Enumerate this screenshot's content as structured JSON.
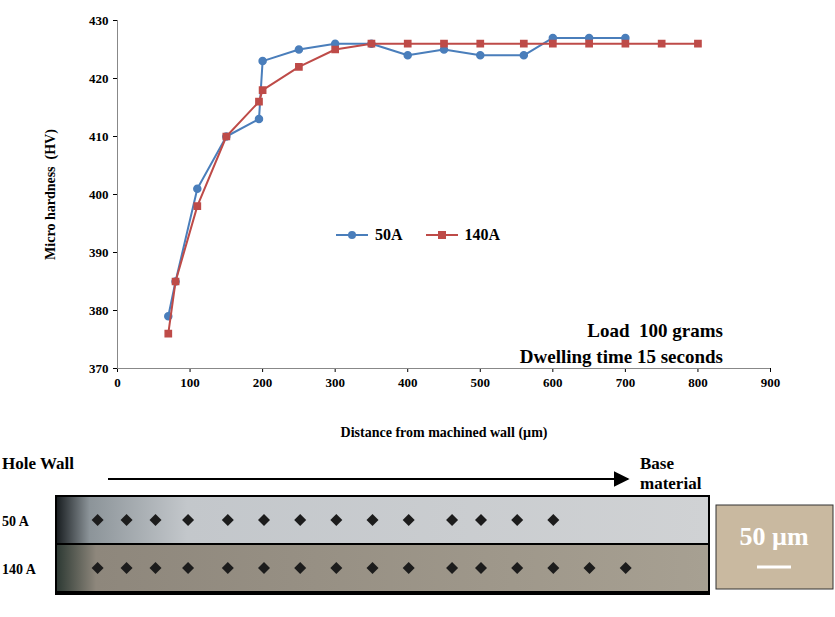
{
  "chart_data": {
    "type": "line",
    "x_label": "Distance from machined wall (µm)",
    "y_label": "Micro hardness  (HV)",
    "annotations": [
      "Load  100 grams",
      "Dwelling time 15 seconds"
    ],
    "xlim": [
      0,
      900
    ],
    "xticks": [
      0,
      100,
      200,
      300,
      400,
      500,
      600,
      700,
      800,
      900
    ],
    "ylim": [
      370,
      430
    ],
    "yticks": [
      370,
      380,
      390,
      400,
      410,
      420,
      430
    ],
    "grid": false,
    "legend": "center",
    "series": [
      {
        "name": "50A",
        "color": "#4a7ebb",
        "marker": "circle",
        "x": [
          70,
          80,
          110,
          150,
          195,
          200,
          250,
          300,
          350,
          400,
          450,
          500,
          560,
          600,
          650,
          700
        ],
        "values": [
          379,
          385,
          401,
          410,
          413,
          423,
          425,
          426,
          426,
          424,
          425,
          424,
          424,
          427,
          427,
          427
        ]
      },
      {
        "name": "140A",
        "color": "#be4b48",
        "marker": "square",
        "x": [
          70,
          80,
          110,
          150,
          195,
          200,
          250,
          300,
          350,
          400,
          450,
          500,
          560,
          600,
          650,
          700,
          750,
          800
        ],
        "values": [
          376,
          385,
          398,
          410,
          416,
          418,
          422,
          425,
          426,
          426,
          426,
          426,
          426,
          426,
          426,
          426,
          426,
          426
        ]
      }
    ]
  },
  "micrograph": {
    "left_label": "Hole Wall",
    "right_label": "Base material",
    "rows": [
      "50 A",
      "140 A"
    ],
    "scale_bar": "50 µm"
  }
}
